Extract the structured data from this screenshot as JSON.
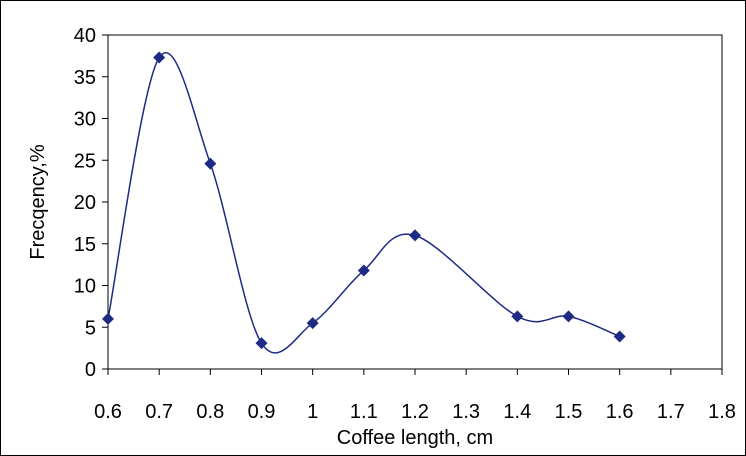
{
  "chart_data": {
    "type": "line",
    "title": "",
    "xlabel": "Coffee length, cm",
    "ylabel": "Frecqency,%",
    "xlim": [
      0.6,
      1.8
    ],
    "ylim": [
      0,
      40
    ],
    "x_ticks": [
      "0.6",
      "0.7",
      "0.8",
      "0.9",
      "1",
      "1.1",
      "1.2",
      "1.3",
      "1.4",
      "1.5",
      "1.6",
      "1.7",
      "1.8"
    ],
    "y_ticks": [
      "0",
      "5",
      "10",
      "15",
      "20",
      "25",
      "30",
      "35",
      "40"
    ],
    "grid": false,
    "legend": "none",
    "smooth": true,
    "series": [
      {
        "x": [
          0.6,
          0.7,
          0.8,
          0.9,
          1.0,
          1.1,
          1.2,
          1.4,
          1.5,
          1.6
        ],
        "y": [
          6.0,
          37.3,
          24.6,
          3.1,
          5.5,
          11.8,
          16.0,
          6.3,
          6.3,
          3.9
        ],
        "color": "#1F2A85",
        "marker": "diamond"
      }
    ]
  }
}
